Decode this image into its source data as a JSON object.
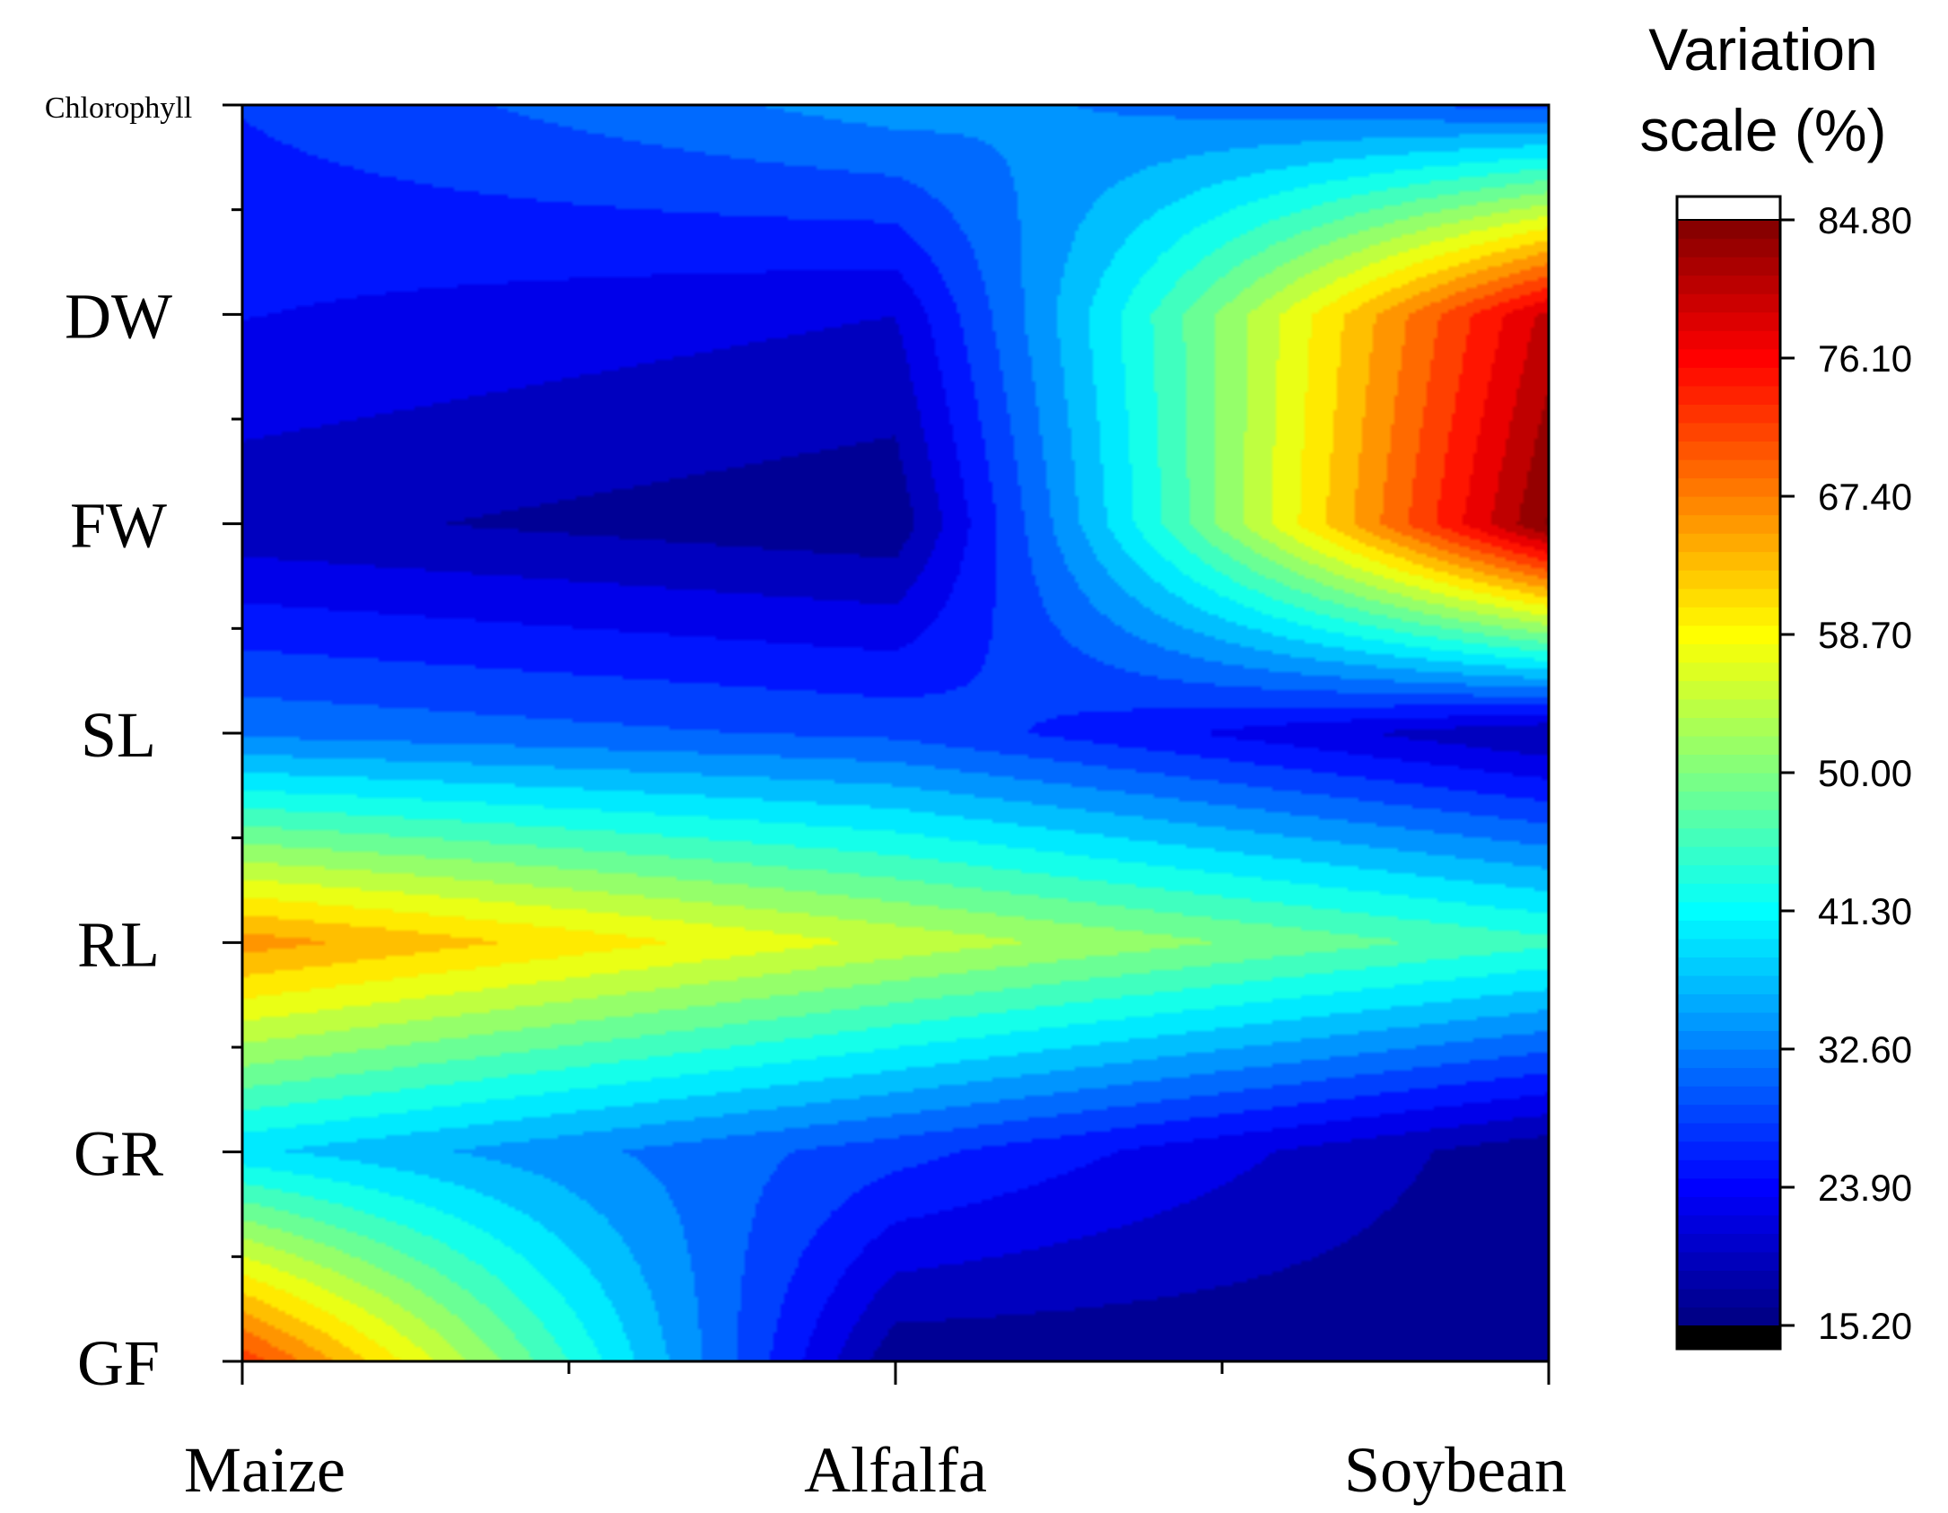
{
  "chart_data": {
    "type": "heatmap",
    "subtype": "filled-contour",
    "title": "",
    "xlabel": "",
    "ylabel": "",
    "x": [
      "Maize",
      "Alfalfa",
      "Soybean"
    ],
    "y": [
      "Chlorophyll",
      "DW",
      "FW",
      "SL",
      "RL",
      "GR",
      "GF"
    ],
    "values": [
      [
        27,
        34,
        29
      ],
      [
        24,
        21,
        80
      ],
      [
        19,
        16,
        85
      ],
      [
        32,
        29,
        18
      ],
      [
        66,
        55,
        45
      ],
      [
        39,
        28,
        16
      ],
      [
        72,
        16,
        16
      ]
    ],
    "colorbar": {
      "title_lines": [
        "Variation",
        "scale (%)"
      ],
      "ticks": [
        "84.80",
        "76.10",
        "67.40",
        "58.70",
        "50.00",
        "41.30",
        "32.60",
        "23.90",
        "15.20"
      ],
      "min": 15.2,
      "max": 84.8,
      "colormap": "jet",
      "over_color": "#ffffff",
      "under_color": "#000000"
    },
    "grid": false,
    "legend_position": "right"
  }
}
